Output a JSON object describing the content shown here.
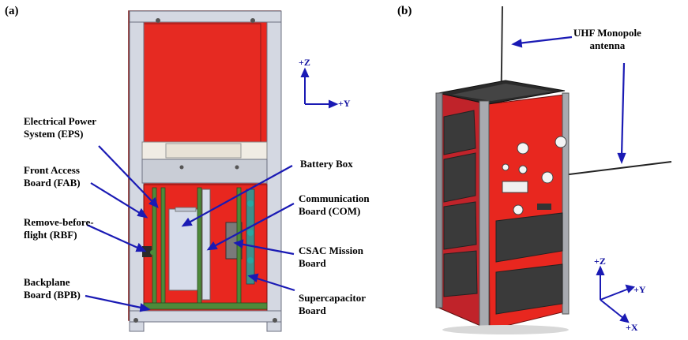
{
  "panels": {
    "a": {
      "tag": "(a)"
    },
    "b": {
      "tag": "(b)"
    }
  },
  "labels_a": {
    "eps_1": "Electrical Power",
    "eps_2": "System (EPS)",
    "fab_1": "Front Access",
    "fab_2": "Board (FAB)",
    "rbf_1": "Remove-before-",
    "rbf_2": "flight (RBF)",
    "bpb_1": "Backplane",
    "bpb_2": "Board (BPB)",
    "battery": "Battery Box",
    "com_1": "Communication",
    "com_2": "Board (COM)",
    "csac_1": "CSAC Mission",
    "csac_2": "Board",
    "supercap_1": "Supercapacitor",
    "supercap_2": "Board"
  },
  "labels_b": {
    "uhf_1": "UHF Monopole",
    "uhf_2": "antenna"
  },
  "axes_a": {
    "z": "+Z",
    "y": "+Y"
  },
  "axes_b": {
    "z": "+Z",
    "y": "+Y",
    "x": "+X"
  },
  "colors": {
    "body_red": "#e8271f",
    "frame_gray": "#c9cdd6",
    "arrow_blue": "#1a1ab4",
    "panel_dark": "#3a3a3a",
    "board_green": "#4e8a3a"
  }
}
